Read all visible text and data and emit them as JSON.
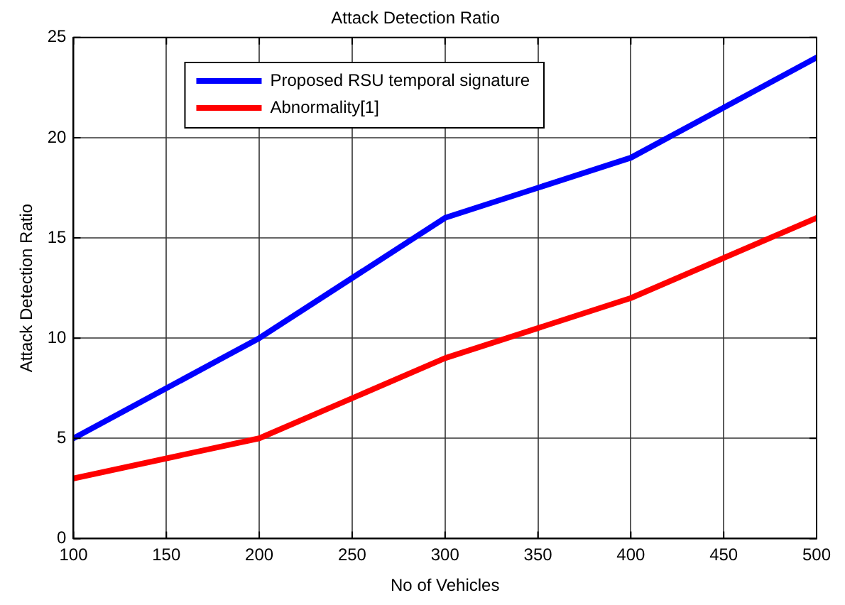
{
  "chart_data": {
    "type": "line",
    "title": "Attack Detection Ratio",
    "xlabel": "No of Vehicles",
    "ylabel": "Attack Detection Ratio",
    "x": [
      100,
      200,
      300,
      400,
      500
    ],
    "series": [
      {
        "name": "Proposed RSU temporal signature",
        "color": "#0000ff",
        "values": [
          5,
          10,
          16,
          19,
          24
        ]
      },
      {
        "name": "Abnormality[1]",
        "color": "#ff0000",
        "values": [
          3,
          5,
          9,
          12,
          16
        ]
      }
    ],
    "xlim": [
      100,
      500
    ],
    "xticks": [
      100,
      150,
      200,
      250,
      300,
      350,
      400,
      450,
      500
    ],
    "ylim": [
      0,
      25
    ],
    "yticks": [
      0,
      5,
      10,
      15,
      20,
      25
    ],
    "grid": true,
    "legend": "top left",
    "marker": "none",
    "line_style": "solid"
  }
}
